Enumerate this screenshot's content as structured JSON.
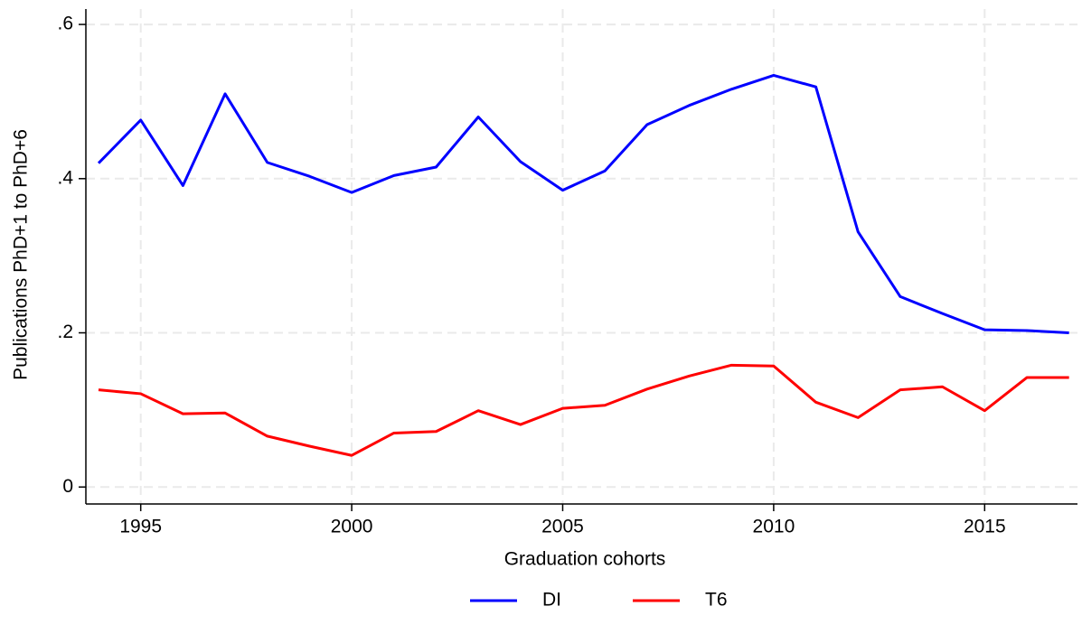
{
  "chart_data": {
    "type": "line",
    "x_label": "Graduation cohorts",
    "y_label": "Publications PhD+1 to PhD+6",
    "x": [
      1994,
      1995,
      1996,
      1997,
      1998,
      1999,
      2000,
      2001,
      2002,
      2003,
      2004,
      2005,
      2006,
      2007,
      2008,
      2009,
      2010,
      2011,
      2012,
      2013,
      2014,
      2015,
      2016,
      2017
    ],
    "series": [
      {
        "name": "DI",
        "color": "#0000ff",
        "values": [
          0.42,
          0.476,
          0.391,
          0.51,
          0.421,
          0.403,
          0.382,
          0.404,
          0.415,
          0.48,
          0.422,
          0.385,
          0.41,
          0.47,
          0.495,
          0.516,
          0.534,
          0.519,
          0.331,
          0.247,
          0.225,
          0.204,
          0.203,
          0.2
        ]
      },
      {
        "name": "T6",
        "color": "#ff0000",
        "values": [
          0.126,
          0.121,
          0.095,
          0.096,
          0.066,
          0.053,
          0.041,
          0.07,
          0.072,
          0.099,
          0.081,
          0.102,
          0.106,
          0.127,
          0.144,
          0.158,
          0.157,
          0.11,
          0.09,
          0.126,
          0.13,
          0.099,
          0.142,
          0.142
        ]
      }
    ],
    "xlim": [
      1993.7,
      2017.2
    ],
    "xticks": [
      1995,
      2000,
      2005,
      2010,
      2015
    ],
    "ylim": [
      -0.022,
      0.62
    ],
    "yticks": [
      0,
      {
        "value": 0.2,
        "label": ".2"
      },
      {
        "value": 0.4,
        "label": ".4"
      },
      {
        "value": 0.6,
        "label": ".6"
      }
    ],
    "grid": true,
    "legend": "bottom"
  }
}
